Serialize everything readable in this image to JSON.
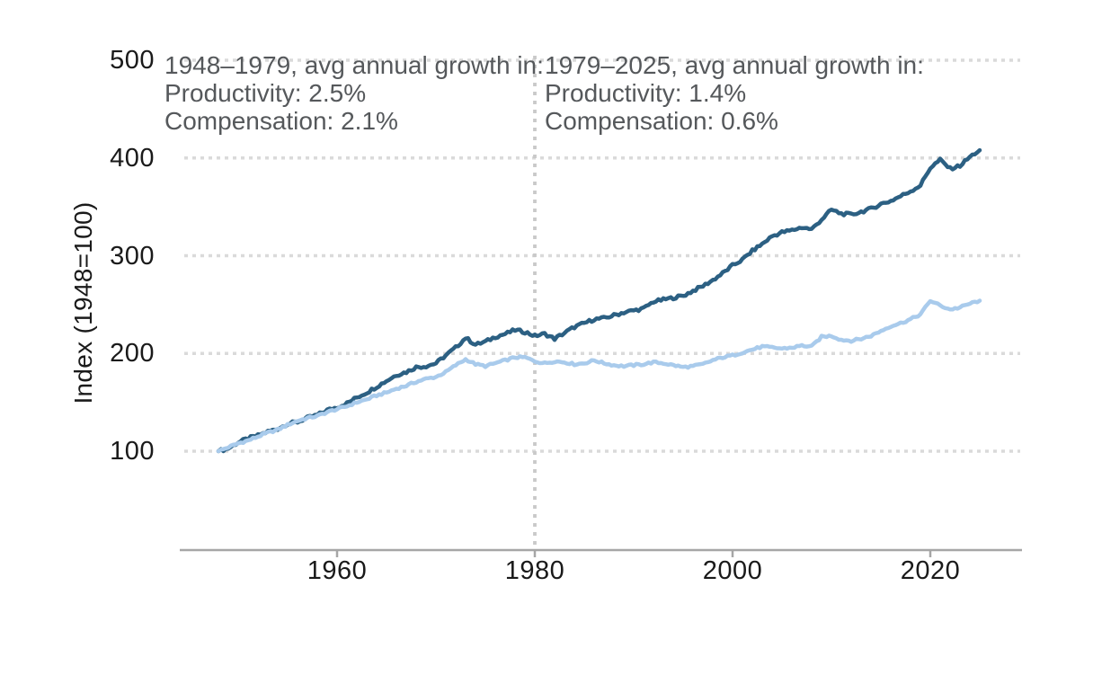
{
  "chart_data": {
    "type": "line",
    "title": "",
    "ylabel": "Index (1948=100)",
    "xlabel": "",
    "x_start": 1948,
    "x_step": 1,
    "x_end": 2025,
    "x_ticks": [
      1960,
      1980,
      2000,
      2020
    ],
    "y_ticks": [
      100,
      200,
      300,
      400,
      500
    ],
    "ylim": [
      0,
      500
    ],
    "grid": "dotted-horizontal",
    "divider_year": 1980,
    "series": [
      {
        "name": "Productivity",
        "color": "#2c6083",
        "values": [
          100,
          103,
          109,
          113,
          116,
          120,
          123,
          128,
          130,
          134,
          137,
          142,
          145,
          149,
          155,
          160,
          166,
          172,
          178,
          181,
          186,
          187,
          190,
          198,
          206,
          216,
          209,
          212,
          217,
          220,
          224,
          222,
          218,
          220,
          215,
          221,
          227,
          231,
          235,
          236,
          239,
          242,
          244,
          246,
          253,
          255,
          257,
          259,
          264,
          269,
          275,
          282,
          290,
          296,
          305,
          312,
          320,
          324,
          326,
          329,
          327,
          337,
          347,
          343,
          342,
          345,
          348,
          353,
          356,
          361,
          366,
          372,
          390,
          398,
          389,
          392,
          401,
          408
        ]
      },
      {
        "name": "Compensation",
        "color": "#a9cbec",
        "values": [
          100,
          104,
          108,
          111,
          115,
          119,
          122,
          127,
          131,
          134,
          136,
          140,
          143,
          146,
          150,
          153,
          157,
          160,
          164,
          167,
          171,
          174,
          176,
          181,
          188,
          194,
          189,
          187,
          190,
          193,
          196,
          196,
          192,
          190,
          192,
          191,
          189,
          190,
          193,
          190,
          188,
          187,
          188,
          189,
          191,
          190,
          188,
          186,
          187,
          189,
          193,
          196,
          198,
          201,
          204,
          207,
          206,
          205,
          206,
          208,
          207,
          217,
          218,
          214,
          213,
          215,
          218,
          223,
          228,
          231,
          235,
          240,
          254,
          249,
          245,
          247,
          251,
          254
        ]
      }
    ],
    "annotations": {
      "left": {
        "title": "1948–1979, avg annual growth in:",
        "productivity": "Productivity: 2.5%",
        "compensation": "Compensation: 2.1%"
      },
      "right": {
        "title": "1979–2025, avg annual growth in:",
        "productivity": "Productivity: 1.4%",
        "compensation": "Compensation: 0.6%"
      }
    },
    "colors": {
      "productivity_line": "#2c6083",
      "compensation_line": "#a9cbec",
      "gridline": "#dadada",
      "divider_line": "#c9c9c9",
      "axis_line": "#a6a6a6",
      "tick_label_text": "#1a1a1a",
      "annotation_text": "#55585b"
    }
  }
}
